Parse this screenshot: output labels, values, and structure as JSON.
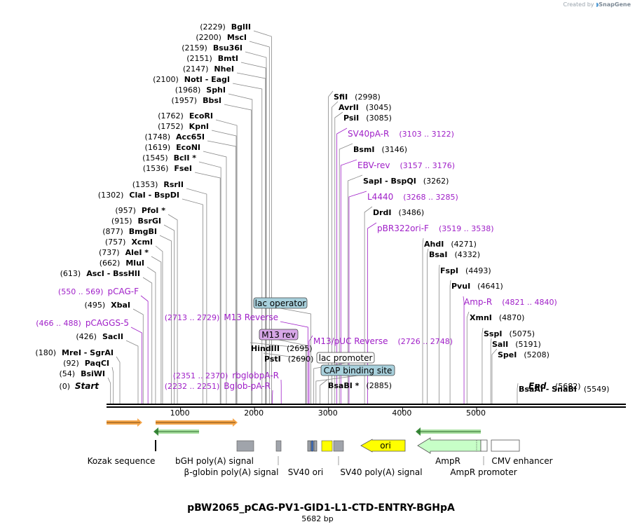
{
  "credit": {
    "prefix": "Created by",
    "brand": "SnapGene"
  },
  "map": {
    "title": "pBW2065_pCAG-PV1-GID1-L1-CTD-ENTRY-BGHpA",
    "length_label": "5682 bp",
    "length_bp": 5682,
    "start_label": "Start",
    "end_label": "End",
    "start_pos": "(0)",
    "end_pos": "(5682)",
    "ticks": [
      1000,
      2000,
      3000,
      4000,
      5000
    ]
  },
  "colors": {
    "enzyme": "#000000",
    "primer": "#a020c8",
    "leader": "#888888",
    "feature_gray": "#a0a4ab",
    "ori": "#ffff00",
    "ampr": "#c7ffc7",
    "lac_box": "#a8d0dc",
    "m13rev_box": "#d8a8e8",
    "orf_orange": "#f6a64a",
    "orf_green": "#3a8a3a"
  },
  "enzymes_left": [
    {
      "name": "BglII",
      "pos": "(2229)",
      "bp": 2229
    },
    {
      "name": "MscI",
      "pos": "(2200)",
      "bp": 2200
    },
    {
      "name": "Bsu36I",
      "pos": "(2159)",
      "bp": 2159
    },
    {
      "name": "BmtI",
      "pos": "(2151)",
      "bp": 2151
    },
    {
      "name": "NheI",
      "pos": "(2147)",
      "bp": 2147
    },
    {
      "name": "NotI  -  EagI",
      "pos": "(2100)",
      "bp": 2100
    },
    {
      "name": "SphI",
      "pos": "(1968)",
      "bp": 1968
    },
    {
      "name": "BbsI",
      "pos": "(1957)",
      "bp": 1957
    },
    {
      "name": "EcoRI",
      "pos": "(1762)",
      "bp": 1762
    },
    {
      "name": "KpnI",
      "pos": "(1752)",
      "bp": 1752
    },
    {
      "name": "Acc65I",
      "pos": "(1748)",
      "bp": 1748
    },
    {
      "name": "EcoNI",
      "pos": "(1619)",
      "bp": 1619
    },
    {
      "name": "BclI *",
      "pos": "(1545)",
      "bp": 1545
    },
    {
      "name": "FseI",
      "pos": "(1536)",
      "bp": 1536
    },
    {
      "name": "RsrII",
      "pos": "(1353)",
      "bp": 1353
    },
    {
      "name": "ClaI  -  BspDI",
      "pos": "(1302)",
      "bp": 1302
    },
    {
      "name": "PfoI *",
      "pos": "(957)",
      "bp": 957
    },
    {
      "name": "BsrGI",
      "pos": "(915)",
      "bp": 915
    },
    {
      "name": "BmgBI",
      "pos": "(877)",
      "bp": 877
    },
    {
      "name": "XcmI",
      "pos": "(757)",
      "bp": 757
    },
    {
      "name": "AleI *",
      "pos": "(737)",
      "bp": 737
    },
    {
      "name": "MluI",
      "pos": "(662)",
      "bp": 662
    },
    {
      "name": "AscI  -  BssHII",
      "pos": "(613)",
      "bp": 613
    },
    {
      "name": "XbaI",
      "pos": "(495)",
      "bp": 495
    },
    {
      "name": "SacII",
      "pos": "(426)",
      "bp": 426
    },
    {
      "name": "MreI  -  SgrAI",
      "pos": "(180)",
      "bp": 180
    },
    {
      "name": "PaqCI",
      "pos": "(92)",
      "bp": 92
    },
    {
      "name": "BsiWI",
      "pos": "(54)",
      "bp": 54
    }
  ],
  "enzymes_right": [
    {
      "name": "SfiI",
      "pos": "(2998)",
      "bp": 2998
    },
    {
      "name": "AvrII",
      "pos": "(3045)",
      "bp": 3045
    },
    {
      "name": "PsiI",
      "pos": "(3085)",
      "bp": 3085
    },
    {
      "name": "BsmI",
      "pos": "(3146)",
      "bp": 3146
    },
    {
      "name": "SapI  -  BspQI",
      "pos": "(3262)",
      "bp": 3262
    },
    {
      "name": "DrdI",
      "pos": "(3486)",
      "bp": 3486
    },
    {
      "name": "AhdI",
      "pos": "(4271)",
      "bp": 4271
    },
    {
      "name": "BsaI",
      "pos": "(4332)",
      "bp": 4332
    },
    {
      "name": "FspI",
      "pos": "(4493)",
      "bp": 4493
    },
    {
      "name": "PvuI",
      "pos": "(4641)",
      "bp": 4641
    },
    {
      "name": "XmnI",
      "pos": "(4870)",
      "bp": 4870
    },
    {
      "name": "SspI",
      "pos": "(5075)",
      "bp": 5075
    },
    {
      "name": "SalI",
      "pos": "(5191)",
      "bp": 5191
    },
    {
      "name": "SpeI",
      "pos": "(5208)",
      "bp": 5208
    },
    {
      "name": "BsaAI  -  SnaBI",
      "pos": "(5549)",
      "bp": 5549
    },
    {
      "name": "HindIII",
      "pos": "(2695)",
      "bp": 2695
    },
    {
      "name": "PstI",
      "pos": "(2690)",
      "bp": 2690
    },
    {
      "name": "BsaBI *",
      "pos": "(2885)",
      "bp": 2885
    }
  ],
  "primers": [
    {
      "name": "SV40pA-R",
      "range": "(3103 .. 3122)",
      "bp": 3112
    },
    {
      "name": "EBV-rev",
      "range": "(3157 .. 3176)",
      "bp": 3166
    },
    {
      "name": "L4440",
      "range": "(3268 .. 3285)",
      "bp": 3276
    },
    {
      "name": "pBR322ori-F",
      "range": "(3519 .. 3538)",
      "bp": 3528
    },
    {
      "name": "Amp-R",
      "range": "(4821 .. 4840)",
      "bp": 4830
    },
    {
      "name": "pCAG-F",
      "range": "(550 .. 569)",
      "bp": 560
    },
    {
      "name": "pCAGGS-5",
      "range": "(466 .. 488)",
      "bp": 477
    },
    {
      "name": "M13 Reverse",
      "range": "(2713 .. 2729)",
      "bp": 2721
    },
    {
      "name": "M13/pUC Reverse",
      "range": "(2726 .. 2748)",
      "bp": 2737
    },
    {
      "name": "rbglobpA-R",
      "range": "(2351 .. 2370)",
      "bp": 2360
    },
    {
      "name": "Bglob-pA-R",
      "range": "(2232 .. 2251)",
      "bp": 2241
    }
  ],
  "boxed_features": [
    {
      "name": "lac operator"
    },
    {
      "name": "M13 rev"
    },
    {
      "name": "lac promoter"
    },
    {
      "name": "CAP binding site"
    }
  ],
  "features": [
    {
      "name": "Kozak sequence"
    },
    {
      "name": "bGH poly(A) signal"
    },
    {
      "name": "β-globin poly(A) signal"
    },
    {
      "name": "SV40 ori"
    },
    {
      "name": "SV40 poly(A) signal"
    },
    {
      "name": "ori"
    },
    {
      "name": "AmpR"
    },
    {
      "name": "AmpR promoter"
    },
    {
      "name": "CMV enhancer"
    }
  ]
}
